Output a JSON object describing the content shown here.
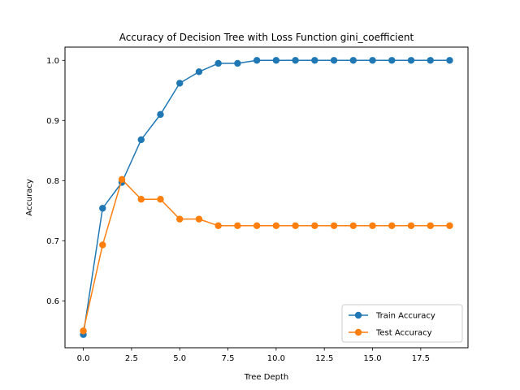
{
  "chart_data": {
    "type": "line",
    "title": "Accuracy of Decision Tree with Loss Function gini_coefficient",
    "xlabel": "Tree Depth",
    "ylabel": "Accuracy",
    "x": [
      0,
      1,
      2,
      3,
      4,
      5,
      6,
      7,
      8,
      9,
      10,
      11,
      12,
      13,
      14,
      15,
      16,
      17,
      18,
      19
    ],
    "xlim": [
      -0.95,
      19.95
    ],
    "ylim": [
      0.522,
      1.022
    ],
    "xticks": [
      0.0,
      2.5,
      5.0,
      7.5,
      10.0,
      12.5,
      15.0,
      17.5
    ],
    "xtick_labels": [
      "0.0",
      "2.5",
      "5.0",
      "7.5",
      "10.0",
      "12.5",
      "15.0",
      "17.5"
    ],
    "yticks": [
      0.6,
      0.7,
      0.8,
      0.9,
      1.0
    ],
    "ytick_labels": [
      "0.6",
      "0.7",
      "0.8",
      "0.9",
      "1.0"
    ],
    "grid": false,
    "legend_position": "lower-right",
    "series": [
      {
        "name": "Train Accuracy",
        "color": "#1f77b4",
        "marker": "circle",
        "values": [
          0.544,
          0.754,
          0.797,
          0.868,
          0.91,
          0.962,
          0.981,
          0.995,
          0.995,
          1.0,
          1.0,
          1.0,
          1.0,
          1.0,
          1.0,
          1.0,
          1.0,
          1.0,
          1.0,
          1.0
        ]
      },
      {
        "name": "Test Accuracy",
        "color": "#ff7f0e",
        "marker": "circle",
        "values": [
          0.55,
          0.693,
          0.802,
          0.769,
          0.769,
          0.736,
          0.736,
          0.725,
          0.725,
          0.725,
          0.725,
          0.725,
          0.725,
          0.725,
          0.725,
          0.725,
          0.725,
          0.725,
          0.725,
          0.725
        ]
      }
    ]
  }
}
